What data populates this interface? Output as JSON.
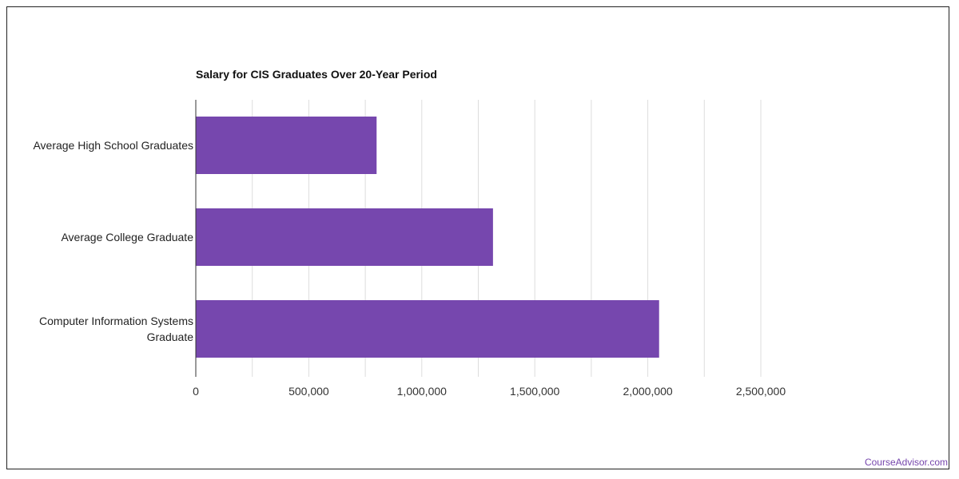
{
  "chart_data": {
    "type": "bar",
    "orientation": "horizontal",
    "title": "Salary for CIS Graduates Over 20-Year Period",
    "categories": [
      "Average High School Graduates",
      "Average College Graduate",
      "Computer Information Systems Graduate"
    ],
    "category_lines": [
      [
        "Average High School Graduates"
      ],
      [
        "Average College Graduate"
      ],
      [
        "Computer Information Systems",
        "Graduate"
      ]
    ],
    "values": [
      800000,
      1315000,
      2050000
    ],
    "xlim": [
      0,
      2500000
    ],
    "xticks": [
      0,
      500000,
      1000000,
      1500000,
      2000000,
      2500000
    ],
    "xtick_labels": [
      "0",
      "500,000",
      "1,000,000",
      "1,500,000",
      "2,000,000",
      "2,500,000"
    ],
    "grid": true,
    "bar_color": "#7647ae",
    "gridline_color": "#dddddd"
  },
  "footer": {
    "credit": "CourseAdvisor.com"
  }
}
